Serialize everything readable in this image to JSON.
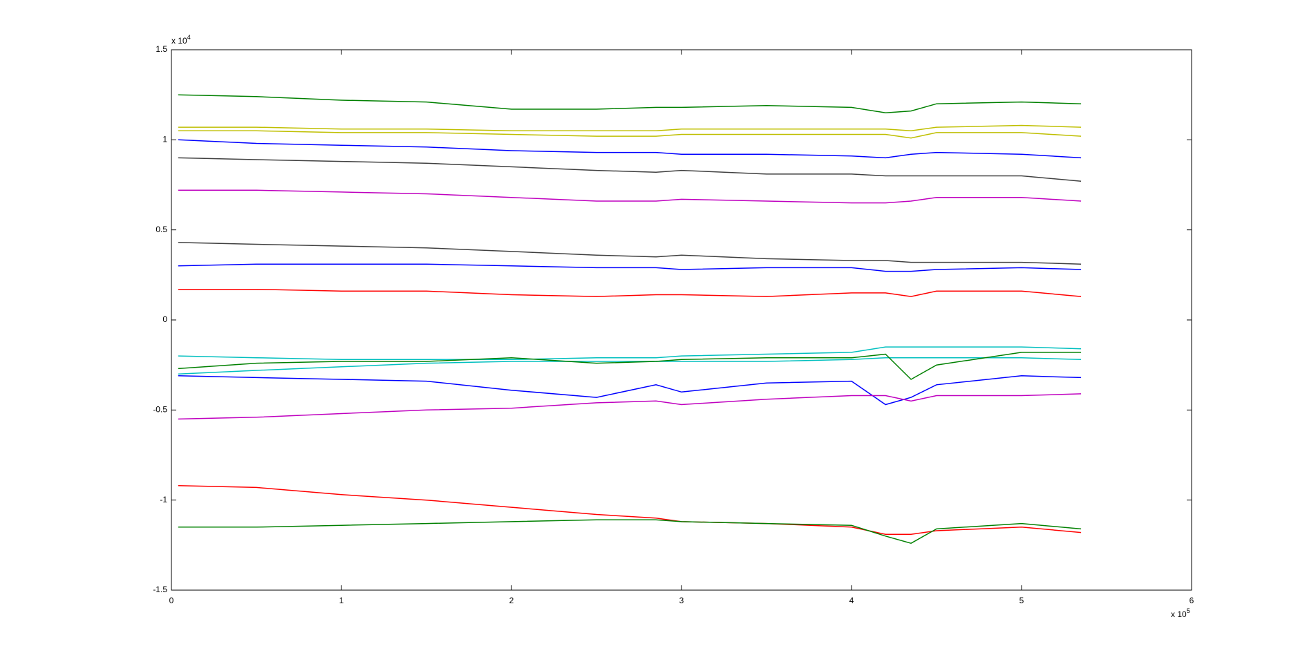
{
  "chart_data": {
    "type": "line",
    "x_multiplier": {
      "base": "x 10",
      "exp": "5"
    },
    "y_multiplier": {
      "base": "x 10",
      "exp": "4"
    },
    "xlim": [
      0,
      6
    ],
    "xticks": [
      0,
      1,
      2,
      3,
      4,
      5,
      6
    ],
    "ylim": [
      -1.5,
      1.5
    ],
    "yticks": [
      -1.5,
      -1,
      -0.5,
      0,
      0.5,
      1,
      1.5
    ],
    "x": [
      0.04,
      0.5,
      1,
      1.5,
      2,
      2.5,
      2.85,
      3,
      3.5,
      4,
      4.2,
      4.35,
      4.5,
      5,
      5.35
    ],
    "series": [
      {
        "color": "#008000",
        "values": [
          1.25,
          1.24,
          1.22,
          1.21,
          1.17,
          1.17,
          1.18,
          1.18,
          1.19,
          1.18,
          1.15,
          1.16,
          1.2,
          1.21,
          1.2
        ]
      },
      {
        "color": "#bfbf00",
        "values": [
          1.07,
          1.07,
          1.06,
          1.06,
          1.05,
          1.05,
          1.05,
          1.06,
          1.06,
          1.06,
          1.06,
          1.05,
          1.07,
          1.08,
          1.07
        ]
      },
      {
        "color": "#bfbf00",
        "values": [
          1.05,
          1.05,
          1.04,
          1.04,
          1.03,
          1.02,
          1.02,
          1.03,
          1.03,
          1.03,
          1.03,
          1.01,
          1.04,
          1.04,
          1.02
        ]
      },
      {
        "color": "#0000ff",
        "values": [
          1.0,
          0.98,
          0.97,
          0.96,
          0.94,
          0.93,
          0.93,
          0.92,
          0.92,
          0.91,
          0.9,
          0.92,
          0.93,
          0.92,
          0.9
        ]
      },
      {
        "color": "#404040",
        "values": [
          0.9,
          0.89,
          0.88,
          0.87,
          0.85,
          0.83,
          0.82,
          0.83,
          0.81,
          0.81,
          0.8,
          0.8,
          0.8,
          0.8,
          0.77
        ]
      },
      {
        "color": "#bf00bf",
        "values": [
          0.72,
          0.72,
          0.71,
          0.7,
          0.68,
          0.66,
          0.66,
          0.67,
          0.66,
          0.65,
          0.65,
          0.66,
          0.68,
          0.68,
          0.66
        ]
      },
      {
        "color": "#404040",
        "values": [
          0.43,
          0.42,
          0.41,
          0.4,
          0.38,
          0.36,
          0.35,
          0.36,
          0.34,
          0.33,
          0.33,
          0.32,
          0.32,
          0.32,
          0.31
        ]
      },
      {
        "color": "#0000ff",
        "values": [
          0.3,
          0.31,
          0.31,
          0.31,
          0.3,
          0.29,
          0.29,
          0.28,
          0.29,
          0.29,
          0.27,
          0.27,
          0.28,
          0.29,
          0.28
        ]
      },
      {
        "color": "#ff0000",
        "values": [
          0.17,
          0.17,
          0.16,
          0.16,
          0.14,
          0.13,
          0.14,
          0.14,
          0.13,
          0.15,
          0.15,
          0.13,
          0.16,
          0.16,
          0.13
        ]
      },
      {
        "color": "#00bfbf",
        "values": [
          -0.2,
          -0.21,
          -0.22,
          -0.22,
          -0.22,
          -0.21,
          -0.21,
          -0.2,
          -0.19,
          -0.18,
          -0.15,
          -0.15,
          -0.15,
          -0.15,
          -0.16
        ]
      },
      {
        "color": "#00bfbf",
        "values": [
          -0.3,
          -0.28,
          -0.26,
          -0.24,
          -0.23,
          -0.23,
          -0.23,
          -0.23,
          -0.23,
          -0.22,
          -0.21,
          -0.21,
          -0.21,
          -0.21,
          -0.22
        ]
      },
      {
        "color": "#008000",
        "values": [
          -0.27,
          -0.24,
          -0.23,
          -0.23,
          -0.21,
          -0.24,
          -0.23,
          -0.22,
          -0.21,
          -0.21,
          -0.19,
          -0.33,
          -0.25,
          -0.18,
          -0.18
        ]
      },
      {
        "color": "#0000ff",
        "values": [
          -0.31,
          -0.32,
          -0.33,
          -0.34,
          -0.39,
          -0.43,
          -0.36,
          -0.4,
          -0.35,
          -0.34,
          -0.47,
          -0.43,
          -0.36,
          -0.31,
          -0.32
        ]
      },
      {
        "color": "#bf00bf",
        "values": [
          -0.55,
          -0.54,
          -0.52,
          -0.5,
          -0.49,
          -0.46,
          -0.45,
          -0.47,
          -0.44,
          -0.42,
          -0.42,
          -0.45,
          -0.42,
          -0.42,
          -0.41
        ]
      },
      {
        "color": "#ff0000",
        "values": [
          -0.92,
          -0.93,
          -0.97,
          -1.0,
          -1.04,
          -1.08,
          -1.1,
          -1.12,
          -1.13,
          -1.15,
          -1.19,
          -1.19,
          -1.17,
          -1.15,
          -1.18
        ]
      },
      {
        "color": "#008000",
        "values": [
          -1.15,
          -1.15,
          -1.14,
          -1.13,
          -1.12,
          -1.11,
          -1.11,
          -1.12,
          -1.13,
          -1.14,
          -1.2,
          -1.24,
          -1.16,
          -1.13,
          -1.16
        ]
      }
    ]
  }
}
